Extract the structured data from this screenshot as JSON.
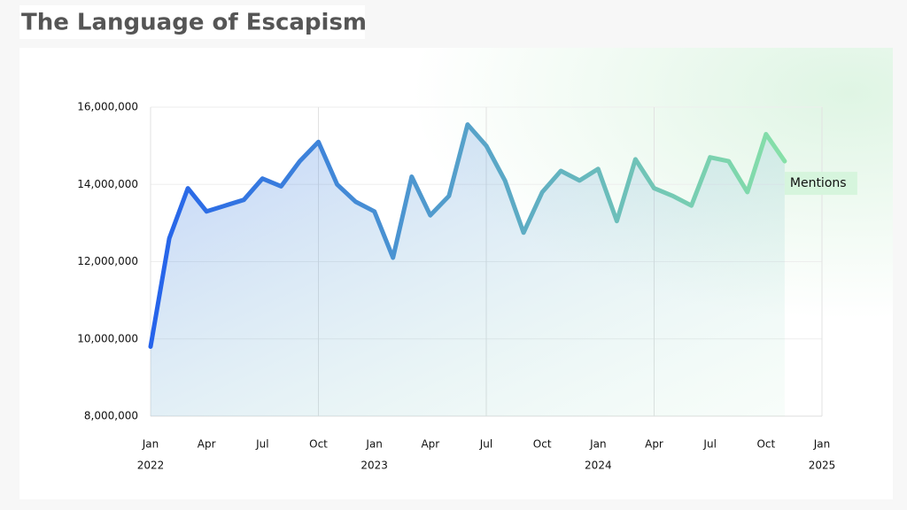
{
  "chart_data": {
    "type": "line",
    "title": "The Language of Escapism",
    "x": [
      "2022-01",
      "2022-02",
      "2022-03",
      "2022-04",
      "2022-05",
      "2022-06",
      "2022-07",
      "2022-08",
      "2022-09",
      "2022-10",
      "2022-11",
      "2022-12",
      "2023-01",
      "2023-02",
      "2023-03",
      "2023-04",
      "2023-05",
      "2023-06",
      "2023-07",
      "2023-08",
      "2023-09",
      "2023-10",
      "2023-11",
      "2023-12",
      "2024-01",
      "2024-02",
      "2024-03",
      "2024-04",
      "2024-05",
      "2024-06",
      "2024-07",
      "2024-08",
      "2024-09",
      "2024-10",
      "2024-11"
    ],
    "series": [
      {
        "name": "Mentions",
        "color": [
          "#2563eb",
          "#86e0a8"
        ],
        "values": [
          9800000,
          12600000,
          13900000,
          13300000,
          13450000,
          13600000,
          14150000,
          13950000,
          14600000,
          15100000,
          14000000,
          13550000,
          13300000,
          12100000,
          14200000,
          13200000,
          13700000,
          15550000,
          15000000,
          14100000,
          12750000,
          13800000,
          14350000,
          14100000,
          14400000,
          13050000,
          14650000,
          13900000,
          13700000,
          13450000,
          14700000,
          14600000,
          13800000,
          15300000,
          14600000
        ]
      }
    ],
    "xlim": [
      "2022-01",
      "2025-01"
    ],
    "xticks": [
      {
        "value": "2022-01",
        "label": "Jan"
      },
      {
        "value": "2022-04",
        "label": "Apr"
      },
      {
        "value": "2022-07",
        "label": "Jul"
      },
      {
        "value": "2022-10",
        "label": "Oct"
      },
      {
        "value": "2023-01",
        "label": "Jan"
      },
      {
        "value": "2023-04",
        "label": "Apr"
      },
      {
        "value": "2023-07",
        "label": "Jul"
      },
      {
        "value": "2023-10",
        "label": "Oct"
      },
      {
        "value": "2024-01",
        "label": "Jan"
      },
      {
        "value": "2024-04",
        "label": "Apr"
      },
      {
        "value": "2024-07",
        "label": "Jul"
      },
      {
        "value": "2024-10",
        "label": "Oct"
      },
      {
        "value": "2025-01",
        "label": "Jan"
      }
    ],
    "year_labels": [
      {
        "value": "2022-01",
        "label": "2022"
      },
      {
        "value": "2023-01",
        "label": "2023"
      },
      {
        "value": "2024-01",
        "label": "2024"
      },
      {
        "value": "2025-01",
        "label": "2025"
      }
    ],
    "ylim": [
      8000000,
      16000000
    ],
    "yticks": [
      {
        "value": 8000000,
        "label": "8,000,000"
      },
      {
        "value": 10000000,
        "label": "10,000,000"
      },
      {
        "value": 12000000,
        "label": "12,000,000"
      },
      {
        "value": 14000000,
        "label": "14,000,000"
      },
      {
        "value": 16000000,
        "label": "16,000,000"
      }
    ],
    "grid": true
  }
}
